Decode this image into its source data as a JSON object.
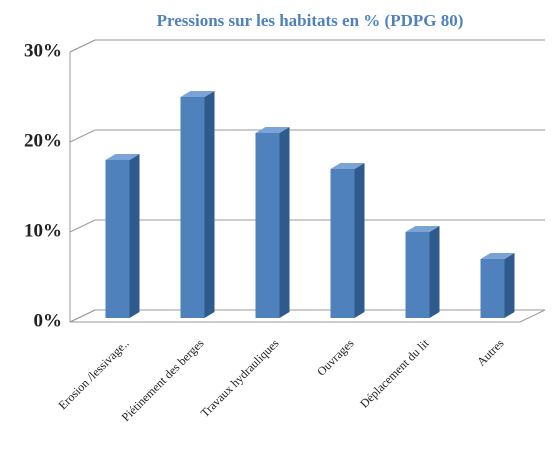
{
  "chart_data": {
    "type": "bar3d",
    "title": "Pressions sur les habitats en % (PDPG 80)",
    "categories": [
      "Erosion /lessivage..",
      "Piétinement des berges",
      "Travaux hydrauliques",
      "Ouvrages",
      "Déplacement du lit",
      "Autres"
    ],
    "values": [
      18,
      25,
      21,
      17,
      10,
      7
    ],
    "color": "#4f81bd",
    "ylim": [
      0,
      30
    ],
    "yticks": [
      {
        "value": 0,
        "label": "0%"
      },
      {
        "value": 10,
        "label": "10%"
      },
      {
        "value": 20,
        "label": "20%"
      },
      {
        "value": 30,
        "label": "30%"
      }
    ],
    "grid": true
  }
}
